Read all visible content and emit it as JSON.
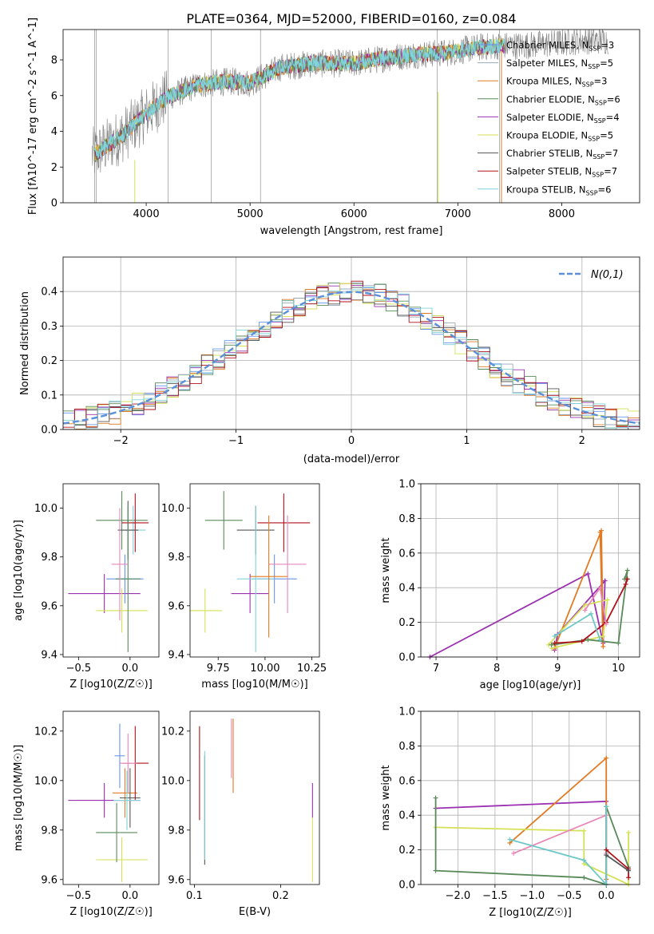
{
  "figure_title": "PLATE=0364, MJD=52000, FIBERID=0160, z=0.084",
  "colors": {
    "obs": "#808080",
    "Chabrier MILES": "#6495ed",
    "Salpeter MILES": "#9aa9b8",
    "Kroupa MILES": "#e07b24",
    "Chabrier ELODIE": "#5a8a5a",
    "Salpeter ELODIE": "#9b30b0",
    "Kroupa ELODIE": "#d4e157",
    "Chabrier STELIB": "#555555",
    "Salpeter STELIB": "#b0101a",
    "Kroupa STELIB": "#7fd3d9",
    "pink": "#e887b8",
    "teal": "#6fc8c8",
    "grid": "#b0b0b0",
    "gauss": "#5b8fd9"
  },
  "chart_data": [
    {
      "type": "line",
      "xlabel": "wavelength [Angstrom, rest frame]",
      "ylabel": "Flux [fλ10^-17 erg cm^-2 s^-1 A^-1]",
      "xlim": [
        3200,
        8750
      ],
      "ylim": [
        0,
        9.7
      ],
      "xticks": [
        4000,
        5000,
        6000,
        7000,
        8000
      ],
      "yticks": [
        0,
        2,
        4,
        6,
        8
      ],
      "legend_position": "right",
      "legend": [
        {
          "name": "Chabrier MILES",
          "n": "3"
        },
        {
          "name": "Salpeter MILES",
          "n": "5"
        },
        {
          "name": "Kroupa MILES",
          "n": "3"
        },
        {
          "name": "Chabrier ELODIE",
          "n": "6"
        },
        {
          "name": "Salpeter ELODIE",
          "n": "4"
        },
        {
          "name": "Kroupa ELODIE",
          "n": "5"
        },
        {
          "name": "Chabrier STELIB",
          "n": "7"
        },
        {
          "name": "Salpeter STELIB",
          "n": "7"
        },
        {
          "name": "Kroupa STELIB",
          "n": "6"
        }
      ],
      "continuum": {
        "x": [
          3500,
          3800,
          4000,
          4200,
          4500,
          4800,
          5000,
          5300,
          5600,
          6000,
          6300,
          6600,
          6900,
          7200,
          7400,
          7600,
          7900,
          8200,
          8400
        ],
        "y": [
          2.7,
          3.9,
          5.0,
          5.9,
          6.6,
          6.8,
          6.7,
          7.6,
          7.8,
          7.8,
          8.1,
          8.3,
          8.4,
          8.7,
          8.8,
          8.8,
          8.9,
          9.1,
          9.1
        ]
      },
      "model_range": [
        3500,
        7450
      ]
    },
    {
      "type": "bar",
      "xlabel": "(data-model)/error",
      "ylabel": "Normed distribution",
      "xlim": [
        -2.5,
        2.5
      ],
      "ylim": [
        0,
        0.5
      ],
      "xticks": [
        -2,
        -1,
        0,
        1,
        2
      ],
      "yticks": [
        0.0,
        0.1,
        0.2,
        0.3,
        0.4
      ],
      "legend_label": "N(0,1)",
      "legend_position": "top-right",
      "gaussian": {
        "mean": 0,
        "sigma": 1
      },
      "bin_width": 0.1
    },
    {
      "type": "scatter",
      "xlabel": "Z [log10(Z/Z☉)]",
      "ylabel": "age [log10(age/yr)]",
      "xlim": [
        -0.65,
        0.28
      ],
      "ylim": [
        9.39,
        10.1
      ],
      "xticks": [
        -0.5,
        0.0
      ],
      "yticks": [
        9.4,
        9.6,
        9.8,
        10.0
      ],
      "points": [
        {
          "x": -0.25,
          "y": 9.65,
          "xe": 0.35,
          "ye": 0.08,
          "c": "Salpeter ELODIE"
        },
        {
          "x": -0.08,
          "y": 9.58,
          "xe": 0.25,
          "ye": 0.09,
          "c": "Kroupa ELODIE"
        },
        {
          "x": -0.08,
          "y": 9.95,
          "xe": 0.25,
          "ye": 0.12,
          "c": "Chabrier ELODIE"
        },
        {
          "x": -0.05,
          "y": 9.71,
          "xe": 0.18,
          "ye": 0.1,
          "c": "Chabrier MILES"
        },
        {
          "x": 0.03,
          "y": 9.91,
          "xe": 0.12,
          "ye": 0.1,
          "c": "Kroupa STELIB"
        },
        {
          "x": 0.05,
          "y": 9.94,
          "xe": 0.13,
          "ye": 0.12,
          "c": "Salpeter STELIB"
        },
        {
          "x": -0.02,
          "y": 9.91,
          "xe": 0.1,
          "ye": 0.12,
          "c": "Chabrier STELIB"
        },
        {
          "x": -0.02,
          "y": 9.71,
          "xe": 0.12,
          "ye": 0.3,
          "c": "Chabrier ELODIE"
        },
        {
          "x": -0.1,
          "y": 9.77,
          "xe": 0.08,
          "ye": 0.23,
          "c": "pink"
        }
      ]
    },
    {
      "type": "scatter",
      "xlabel": "mass [log10(M/M☉)]",
      "ylabel": "",
      "xlim": [
        9.6,
        10.29
      ],
      "ylim": [
        9.39,
        10.1
      ],
      "xticks": [
        9.75,
        10.0,
        10.25
      ],
      "yticks": [
        9.4,
        9.6,
        9.8,
        10.0
      ],
      "points": [
        {
          "x": 9.68,
          "y": 9.58,
          "xe": 0.09,
          "ye": 0.09,
          "c": "Kroupa ELODIE"
        },
        {
          "x": 9.78,
          "y": 9.95,
          "xe": 0.1,
          "ye": 0.12,
          "c": "Chabrier ELODIE"
        },
        {
          "x": 9.92,
          "y": 9.65,
          "xe": 0.1,
          "ye": 0.08,
          "c": "Salpeter ELODIE"
        },
        {
          "x": 9.95,
          "y": 9.91,
          "xe": 0.1,
          "ye": 0.1,
          "c": "Chabrier STELIB"
        },
        {
          "x": 10.1,
          "y": 9.94,
          "xe": 0.14,
          "ye": 0.12,
          "c": "Salpeter STELIB"
        },
        {
          "x": 10.05,
          "y": 9.71,
          "xe": 0.12,
          "ye": 0.1,
          "c": "Chabrier MILES"
        },
        {
          "x": 9.95,
          "y": 9.71,
          "xe": 0.1,
          "ye": 0.3,
          "c": "Kroupa STELIB"
        },
        {
          "x": 10.12,
          "y": 9.77,
          "xe": 0.1,
          "ye": 0.2,
          "c": "pink"
        },
        {
          "x": 10.02,
          "y": 9.72,
          "xe": 0.1,
          "ye": 0.25,
          "c": "Kroupa MILES"
        }
      ]
    },
    {
      "type": "line",
      "xlabel": "age [log10(age/yr)]",
      "ylabel": "mass weight",
      "xlim": [
        6.75,
        10.35
      ],
      "ylim": [
        0,
        1.0
      ],
      "xticks": [
        7,
        8,
        9,
        10
      ],
      "yticks": [
        0.0,
        0.2,
        0.4,
        0.6,
        0.8,
        1.0
      ],
      "series": [
        {
          "c": "Salpeter ELODIE",
          "x": [
            6.9,
            9.5,
            9.75,
            9.78,
            9.0,
            8.95
          ],
          "y": [
            0.0,
            0.48,
            0.08,
            0.44,
            0.13,
            0.04
          ]
        },
        {
          "c": "Kroupa MILES",
          "x": [
            8.95,
            9.72,
            9.75,
            9.7
          ],
          "y": [
            0.05,
            0.73,
            0.06,
            0.72
          ]
        },
        {
          "c": "Kroupa ELODIE",
          "x": [
            8.85,
            9.45,
            9.82,
            9.75,
            8.9
          ],
          "y": [
            0.07,
            0.3,
            0.33,
            0.12,
            0.05
          ]
        },
        {
          "c": "Chabrier ELODIE",
          "x": [
            8.9,
            9.5,
            10.0,
            10.15,
            10.1
          ],
          "y": [
            0.07,
            0.1,
            0.08,
            0.5,
            0.45
          ]
        },
        {
          "c": "Salpeter STELIB",
          "x": [
            8.95,
            9.4,
            9.8,
            10.12,
            10.15
          ],
          "y": [
            0.08,
            0.09,
            0.2,
            0.42,
            0.45
          ]
        },
        {
          "c": "pink",
          "x": [
            9.45,
            9.7,
            9.8
          ],
          "y": [
            0.27,
            0.4,
            0.19
          ]
        },
        {
          "c": "teal",
          "x": [
            8.95,
            9.55,
            9.7
          ],
          "y": [
            0.12,
            0.25,
            0.1
          ]
        }
      ]
    },
    {
      "type": "scatter",
      "xlabel": "Z [log10(Z/Z☉)]",
      "ylabel": "mass [log10(M/M☉)]",
      "xlim": [
        -0.65,
        0.28
      ],
      "ylim": [
        9.58,
        10.28
      ],
      "xticks": [
        -0.5,
        0.0
      ],
      "yticks": [
        9.6,
        9.8,
        10.0,
        10.2
      ],
      "points": [
        {
          "x": -0.25,
          "y": 9.92,
          "xe": 0.35,
          "ye": 0.07,
          "c": "Salpeter ELODIE"
        },
        {
          "x": -0.08,
          "y": 9.68,
          "xe": 0.25,
          "ye": 0.09,
          "c": "Kroupa ELODIE"
        },
        {
          "x": -0.13,
          "y": 9.79,
          "xe": 0.2,
          "ye": 0.12,
          "c": "Chabrier ELODIE"
        },
        {
          "x": -0.05,
          "y": 9.95,
          "xe": 0.12,
          "ye": 0.1,
          "c": "Kroupa MILES"
        },
        {
          "x": 0.0,
          "y": 9.93,
          "xe": 0.1,
          "ye": 0.12,
          "c": "Chabrier STELIB"
        },
        {
          "x": 0.05,
          "y": 10.07,
          "xe": 0.13,
          "ye": 0.15,
          "c": "Salpeter STELIB"
        },
        {
          "x": -0.03,
          "y": 9.92,
          "xe": 0.13,
          "ye": 0.12,
          "c": "Kroupa STELIB"
        },
        {
          "x": -0.02,
          "y": 10.07,
          "xe": 0.08,
          "ye": 0.12,
          "c": "pink"
        },
        {
          "x": -0.1,
          "y": 10.1,
          "xe": 0.05,
          "ye": 0.13,
          "c": "Chabrier MILES"
        }
      ]
    },
    {
      "type": "scatter",
      "xlabel": "E(B-V)",
      "ylabel": "",
      "xlim": [
        0.095,
        0.245
      ],
      "ylim": [
        9.58,
        10.28
      ],
      "xticks": [
        0.1,
        0.2
      ],
      "yticks": [
        9.6,
        9.8,
        10.0,
        10.2
      ],
      "points": [
        {
          "x": 0.106,
          "y": 10.03,
          "xe": 0,
          "ye": 0.19,
          "c": "Salpeter STELIB"
        },
        {
          "x": 0.112,
          "y": 9.88,
          "xe": 0,
          "ye": 0.22,
          "c": "Chabrier STELIB"
        },
        {
          "x": 0.112,
          "y": 9.9,
          "xe": 0,
          "ye": 0.22,
          "c": "Kroupa STELIB"
        },
        {
          "x": 0.143,
          "y": 10.13,
          "xe": 0,
          "ye": 0.12,
          "c": "pink"
        },
        {
          "x": 0.145,
          "y": 10.1,
          "xe": 0,
          "ye": 0.15,
          "c": "Kroupa MILES"
        },
        {
          "x": 0.237,
          "y": 9.92,
          "xe": 0,
          "ye": 0.07,
          "c": "Salpeter ELODIE"
        },
        {
          "x": 0.237,
          "y": 9.72,
          "xe": 0,
          "ye": 0.13,
          "c": "Kroupa ELODIE"
        }
      ]
    },
    {
      "type": "line",
      "xlabel": "Z [log10(Z/Z☉)]",
      "ylabel": "mass weight",
      "xlim": [
        -2.5,
        0.45
      ],
      "ylim": [
        0,
        1.0
      ],
      "xticks": [
        -2.0,
        -1.5,
        -1.0,
        -0.5,
        0.0
      ],
      "yticks": [
        0.0,
        0.2,
        0.4,
        0.6,
        0.8,
        1.0
      ],
      "series": [
        {
          "c": "Salpeter ELODIE",
          "x": [
            -2.3,
            0.0,
            0.0
          ],
          "y": [
            0.44,
            0.48,
            0.0
          ]
        },
        {
          "c": "Kroupa MILES",
          "x": [
            -1.3,
            0.0,
            0.0
          ],
          "y": [
            0.24,
            0.73,
            0.03
          ]
        },
        {
          "c": "Kroupa ELODIE",
          "x": [
            -2.3,
            -0.3,
            -0.3,
            0.3,
            0.3
          ],
          "y": [
            0.33,
            0.31,
            0.12,
            0.0,
            0.3
          ]
        },
        {
          "c": "Chabrier ELODIE",
          "x": [
            -2.3,
            -2.3,
            -0.3,
            0.0,
            0.0,
            0.3
          ],
          "y": [
            0.5,
            0.08,
            0.04,
            0.0,
            0.45,
            0.1
          ]
        },
        {
          "c": "pink",
          "x": [
            -1.25,
            0.0,
            0.0
          ],
          "y": [
            0.18,
            0.4,
            0.18
          ]
        },
        {
          "c": "teal",
          "x": [
            -1.3,
            -0.3,
            0.0,
            0.0
          ],
          "y": [
            0.26,
            0.14,
            0.0,
            0.45
          ]
        },
        {
          "c": "Salpeter STELIB",
          "x": [
            0.0,
            0.3,
            0.3
          ],
          "y": [
            0.2,
            0.09,
            0.04
          ]
        },
        {
          "c": "Chabrier STELIB",
          "x": [
            0.0,
            0.3
          ],
          "y": [
            0.17,
            0.08
          ]
        }
      ]
    }
  ]
}
